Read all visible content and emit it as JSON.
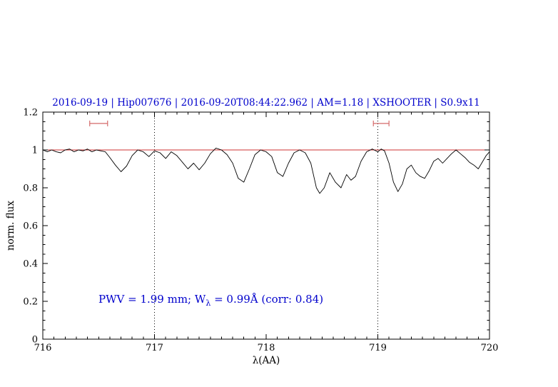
{
  "page": {
    "background": "#ffffff"
  },
  "colors": {
    "title_text": "#0000cc",
    "annotation_text": "#0000cc",
    "reference_line": "#cc3333",
    "range_marker": "#d46a6a",
    "spectrum_line": "#000000",
    "frame": "#000000"
  },
  "annotation": {
    "prefix": "PWV = 1.99 mm; W",
    "subscript": "λ",
    "suffix": " = 0.99Å (corr: 0.84)"
  },
  "chart_data": {
    "type": "line",
    "title": "2016-09-19 | Hip007676 | 2016-09-20T08:44:22.962 | AM=1.18 | XSHOOTER | S0.9x11",
    "xlabel": "λ(AA)",
    "ylabel": "norm. flux",
    "xlim": [
      716,
      720
    ],
    "ylim": [
      0,
      1.2
    ],
    "xticks": [
      716,
      717,
      718,
      719,
      720
    ],
    "xtick_labels": [
      "716",
      "717",
      "718",
      "719",
      "720"
    ],
    "x_minor_step": 0.1,
    "yticks": [
      0,
      0.2,
      0.4,
      0.6,
      0.8,
      1.0,
      1.2
    ],
    "ytick_labels": [
      "0",
      "0.2",
      "0.4",
      "0.6",
      "0.8",
      "1",
      "1.2"
    ],
    "y_minor_step": 0.05,
    "grid": false,
    "legend": "none",
    "dotted_vlines": [
      717,
      719
    ],
    "reference_hline": 1.0,
    "range_markers": [
      {
        "x1": 716.42,
        "x2": 716.58,
        "y": 1.14
      },
      {
        "x1": 718.96,
        "x2": 719.1,
        "y": 1.14
      }
    ],
    "annotation_text": "PWV = 1.99 mm; W_λ = 0.99Å (corr: 0.84)",
    "series": [
      {
        "name": "normalized telluric spectrum",
        "points": [
          [
            716.0,
            1.0
          ],
          [
            716.04,
            0.99
          ],
          [
            716.08,
            1.0
          ],
          [
            716.12,
            0.99
          ],
          [
            716.16,
            0.985
          ],
          [
            716.2,
            1.0
          ],
          [
            716.24,
            1.005
          ],
          [
            716.28,
            0.99
          ],
          [
            716.32,
            1.0
          ],
          [
            716.36,
            0.995
          ],
          [
            716.4,
            1.005
          ],
          [
            716.44,
            0.99
          ],
          [
            716.48,
            1.0
          ],
          [
            716.52,
            0.995
          ],
          [
            716.56,
            0.99
          ],
          [
            716.6,
            0.96
          ],
          [
            716.65,
            0.92
          ],
          [
            716.7,
            0.885
          ],
          [
            716.75,
            0.915
          ],
          [
            716.8,
            0.97
          ],
          [
            716.85,
            1.0
          ],
          [
            716.9,
            0.99
          ],
          [
            716.95,
            0.965
          ],
          [
            717.0,
            0.995
          ],
          [
            717.05,
            0.985
          ],
          [
            717.1,
            0.955
          ],
          [
            717.15,
            0.99
          ],
          [
            717.2,
            0.97
          ],
          [
            717.25,
            0.935
          ],
          [
            717.3,
            0.9
          ],
          [
            717.35,
            0.93
          ],
          [
            717.4,
            0.895
          ],
          [
            717.45,
            0.93
          ],
          [
            717.5,
            0.98
          ],
          [
            717.55,
            1.01
          ],
          [
            717.6,
            1.0
          ],
          [
            717.65,
            0.975
          ],
          [
            717.7,
            0.93
          ],
          [
            717.75,
            0.85
          ],
          [
            717.8,
            0.83
          ],
          [
            717.85,
            0.9
          ],
          [
            717.9,
            0.975
          ],
          [
            717.95,
            1.0
          ],
          [
            718.0,
            0.99
          ],
          [
            718.05,
            0.965
          ],
          [
            718.1,
            0.88
          ],
          [
            718.15,
            0.86
          ],
          [
            718.2,
            0.93
          ],
          [
            718.25,
            0.985
          ],
          [
            718.3,
            1.0
          ],
          [
            718.35,
            0.985
          ],
          [
            718.4,
            0.93
          ],
          [
            718.45,
            0.8
          ],
          [
            718.48,
            0.77
          ],
          [
            718.52,
            0.8
          ],
          [
            718.57,
            0.88
          ],
          [
            718.62,
            0.83
          ],
          [
            718.67,
            0.8
          ],
          [
            718.72,
            0.87
          ],
          [
            718.76,
            0.84
          ],
          [
            718.8,
            0.86
          ],
          [
            718.85,
            0.94
          ],
          [
            718.9,
            0.99
          ],
          [
            718.95,
            1.005
          ],
          [
            719.0,
            0.99
          ],
          [
            719.03,
            1.005
          ],
          [
            719.06,
            0.995
          ],
          [
            719.1,
            0.93
          ],
          [
            719.14,
            0.83
          ],
          [
            719.18,
            0.78
          ],
          [
            719.22,
            0.82
          ],
          [
            719.26,
            0.9
          ],
          [
            719.3,
            0.92
          ],
          [
            719.34,
            0.88
          ],
          [
            719.38,
            0.86
          ],
          [
            719.42,
            0.85
          ],
          [
            719.46,
            0.89
          ],
          [
            719.5,
            0.94
          ],
          [
            719.54,
            0.955
          ],
          [
            719.58,
            0.93
          ],
          [
            719.62,
            0.955
          ],
          [
            719.66,
            0.98
          ],
          [
            719.7,
            1.0
          ],
          [
            719.74,
            0.98
          ],
          [
            719.78,
            0.96
          ],
          [
            719.82,
            0.935
          ],
          [
            719.86,
            0.92
          ],
          [
            719.9,
            0.9
          ],
          [
            719.94,
            0.94
          ],
          [
            719.97,
            0.97
          ],
          [
            720.0,
            0.99
          ]
        ]
      }
    ]
  }
}
